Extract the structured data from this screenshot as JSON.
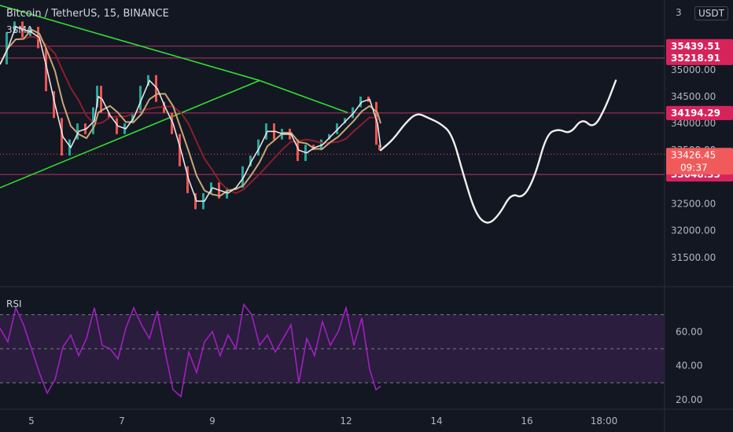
{
  "header": {
    "title": "Bitcoin / TetherUS, 15, BINANCE",
    "indicator": "3SMA",
    "currency": "USDT"
  },
  "rsi_label": "RSI",
  "chart_data": {
    "type": "line",
    "x_ticks": [
      "5",
      "7",
      "9",
      "12",
      "14",
      "16",
      "18:00"
    ],
    "price_axis": {
      "ylim": [
        31000,
        36300
      ],
      "ticks": [
        31500,
        32000,
        32500,
        33000,
        33500,
        34000,
        34500,
        35000
      ],
      "tick_labels": [
        "31500.00",
        "32000.00",
        "32500.00",
        "33000.00",
        "33500.00",
        "34000.00",
        "34500.00",
        "35000.00"
      ],
      "top_clipped_label": "3"
    },
    "rsi_axis": {
      "ylim": [
        15,
        85
      ],
      "ticks": [
        20,
        40,
        60
      ],
      "tick_labels": [
        "20.00",
        "40.00",
        "60.00"
      ],
      "bands": [
        70,
        50,
        30
      ]
    },
    "horizontal_levels": [
      {
        "label": "35439.51",
        "value": 35439.51
      },
      {
        "label": "35218.91",
        "value": 35218.91
      },
      {
        "label": "34194.29",
        "value": 34194.29
      },
      {
        "label": "33048.33",
        "value": 33048.33
      }
    ],
    "current_price": {
      "label": "33426.45",
      "countdown": "09:37",
      "value": 33426.45
    },
    "price_series": [
      [
        0,
        35100
      ],
      [
        10,
        35700
      ],
      [
        20,
        35900
      ],
      [
        30,
        35600
      ],
      [
        40,
        35800
      ],
      [
        50,
        35400
      ],
      [
        60,
        34600
      ],
      [
        70,
        34100
      ],
      [
        80,
        33400
      ],
      [
        90,
        33700
      ],
      [
        100,
        34000
      ],
      [
        110,
        33800
      ],
      [
        120,
        34300
      ],
      [
        125,
        34700
      ],
      [
        130,
        34200
      ],
      [
        140,
        34100
      ],
      [
        150,
        33800
      ],
      [
        160,
        34000
      ],
      [
        170,
        34200
      ],
      [
        180,
        34700
      ],
      [
        190,
        34900
      ],
      [
        200,
        34400
      ],
      [
        210,
        34200
      ],
      [
        220,
        33800
      ],
      [
        230,
        33200
      ],
      [
        240,
        32700
      ],
      [
        250,
        32400
      ],
      [
        260,
        32700
      ],
      [
        270,
        32900
      ],
      [
        280,
        32600
      ],
      [
        290,
        32800
      ],
      [
        300,
        32800
      ],
      [
        310,
        33200
      ],
      [
        320,
        33400
      ],
      [
        330,
        33700
      ],
      [
        340,
        34000
      ],
      [
        350,
        33700
      ],
      [
        360,
        33900
      ],
      [
        370,
        33700
      ],
      [
        380,
        33300
      ],
      [
        390,
        33600
      ],
      [
        400,
        33500
      ],
      [
        410,
        33700
      ],
      [
        420,
        33800
      ],
      [
        430,
        34000
      ],
      [
        440,
        34100
      ],
      [
        450,
        34300
      ],
      [
        460,
        34500
      ],
      [
        470,
        34400
      ],
      [
        480,
        33600
      ],
      [
        484,
        33500
      ]
    ],
    "drawn_path": [
      [
        484,
        33500
      ],
      [
        500,
        33700
      ],
      [
        515,
        34000
      ],
      [
        530,
        34200
      ],
      [
        545,
        34100
      ],
      [
        560,
        34000
      ],
      [
        575,
        33800
      ],
      [
        590,
        33000
      ],
      [
        605,
        32300
      ],
      [
        620,
        32100
      ],
      [
        635,
        32300
      ],
      [
        650,
        32700
      ],
      [
        665,
        32600
      ],
      [
        680,
        33000
      ],
      [
        695,
        33800
      ],
      [
        710,
        33900
      ],
      [
        725,
        33800
      ],
      [
        740,
        34100
      ],
      [
        755,
        33900
      ],
      [
        770,
        34300
      ],
      [
        783,
        34800
      ]
    ],
    "trend_lines": [
      {
        "from": [
          0,
          36200
        ],
        "to": [
          330,
          34800
        ]
      },
      {
        "from": [
          330,
          34800
        ],
        "to": [
          442,
          34200
        ]
      },
      {
        "from": [
          0,
          32800
        ],
        "to": [
          330,
          34800
        ]
      }
    ],
    "rsi_series": [
      [
        0,
        62
      ],
      [
        10,
        54
      ],
      [
        20,
        74
      ],
      [
        30,
        64
      ],
      [
        40,
        50
      ],
      [
        50,
        36
      ],
      [
        60,
        24
      ],
      [
        70,
        32
      ],
      [
        80,
        51
      ],
      [
        90,
        58
      ],
      [
        100,
        46
      ],
      [
        110,
        56
      ],
      [
        120,
        74
      ],
      [
        130,
        52
      ],
      [
        140,
        50
      ],
      [
        150,
        44
      ],
      [
        160,
        62
      ],
      [
        170,
        74
      ],
      [
        180,
        64
      ],
      [
        190,
        56
      ],
      [
        200,
        72
      ],
      [
        210,
        48
      ],
      [
        220,
        26
      ],
      [
        230,
        22
      ],
      [
        240,
        48
      ],
      [
        250,
        36
      ],
      [
        260,
        54
      ],
      [
        270,
        60
      ],
      [
        280,
        46
      ],
      [
        290,
        58
      ],
      [
        300,
        50
      ],
      [
        310,
        76
      ],
      [
        320,
        70
      ],
      [
        330,
        52
      ],
      [
        340,
        58
      ],
      [
        350,
        48
      ],
      [
        360,
        56
      ],
      [
        370,
        64
      ],
      [
        380,
        30
      ],
      [
        390,
        56
      ],
      [
        400,
        46
      ],
      [
        410,
        66
      ],
      [
        420,
        52
      ],
      [
        430,
        60
      ],
      [
        440,
        74
      ],
      [
        450,
        52
      ],
      [
        460,
        68
      ],
      [
        470,
        38
      ],
      [
        478,
        26
      ],
      [
        484,
        28
      ]
    ]
  }
}
